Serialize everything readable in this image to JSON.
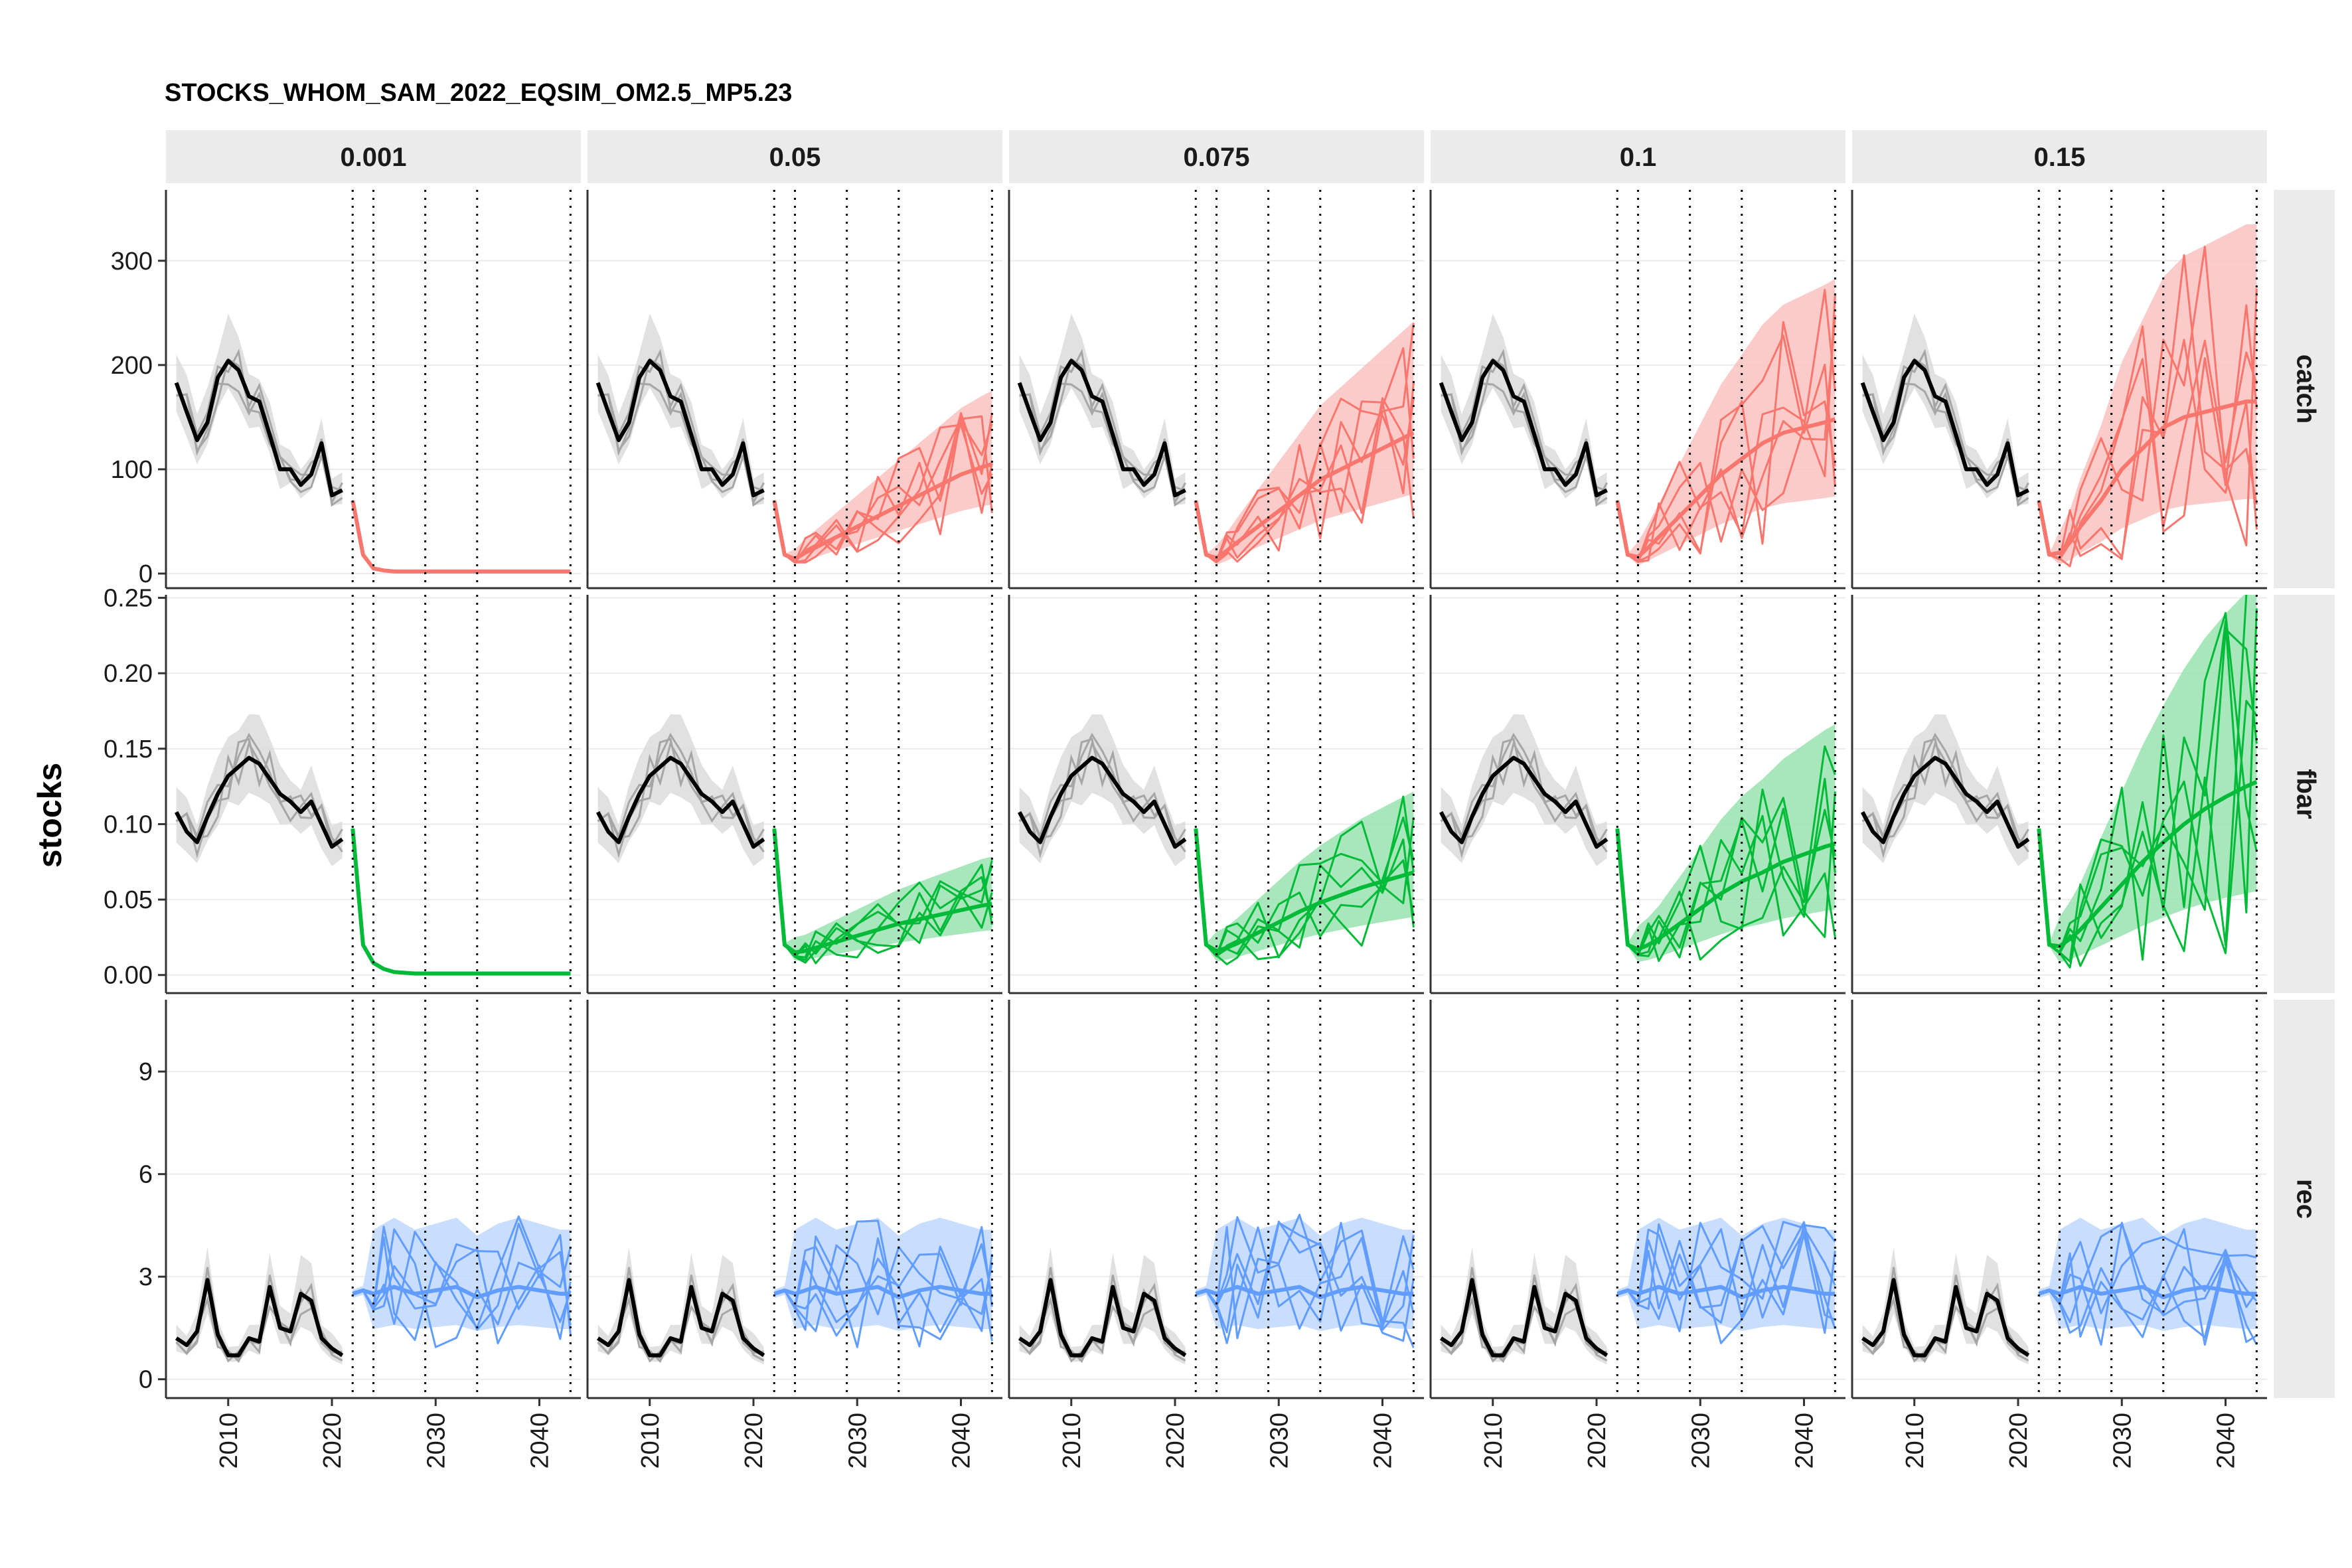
{
  "chart_data": {
    "type": "line",
    "title": "STOCKS_WHOM_SAM_2022_EQSIM_OM2.5_MP5.23",
    "ylabel": "stocks",
    "xlabel": "",
    "facet_columns": [
      "0.001",
      "0.05",
      "0.075",
      "0.1",
      "0.15"
    ],
    "facet_rows": [
      "catch",
      "fbar",
      "rec"
    ],
    "x_ticks": [
      2010,
      2020,
      2030,
      2040
    ],
    "xlim": [
      2004,
      2044
    ],
    "vlines": [
      2022,
      2024,
      2029,
      2034,
      2043
    ],
    "grid": "horizontal major gridlines",
    "rows": [
      {
        "name": "catch",
        "ylim": [
          -14,
          368
        ],
        "y_ticks": [
          0,
          100,
          200,
          300
        ],
        "y_tick_labels": [
          "0",
          "100",
          "200",
          "300"
        ],
        "color": "#F8766D",
        "band_color": "#F9C2BE",
        "history": {
          "x": [
            2005,
            2006,
            2007,
            2008,
            2009,
            2010,
            2011,
            2012,
            2013,
            2014,
            2015,
            2016,
            2017,
            2018,
            2019,
            2020,
            2021
          ],
          "median": [
            183,
            155,
            128,
            145,
            188,
            204,
            195,
            170,
            165,
            133,
            100,
            100,
            85,
            95,
            125,
            75,
            80
          ]
        },
        "projection_median": {
          "0.001": {
            "x": [
              2022,
              2023,
              2024,
              2025,
              2026,
              2028,
              2030,
              2032,
              2034,
              2036,
              2038,
              2040,
              2042,
              2043
            ],
            "y": [
              70,
              18,
              5,
              3,
              2,
              2,
              2,
              2,
              2,
              2,
              2,
              2,
              2,
              2
            ]
          },
          "0.05": {
            "x": [
              2022,
              2023,
              2024,
              2025,
              2026,
              2028,
              2030,
              2032,
              2034,
              2036,
              2038,
              2040,
              2042,
              2043
            ],
            "y": [
              70,
              18,
              14,
              20,
              25,
              35,
              45,
              55,
              65,
              75,
              85,
              95,
              102,
              105
            ]
          },
          "0.075": {
            "x": [
              2022,
              2023,
              2024,
              2025,
              2026,
              2028,
              2030,
              2032,
              2034,
              2036,
              2038,
              2040,
              2042,
              2043
            ],
            "y": [
              70,
              18,
              15,
              22,
              30,
              45,
              60,
              75,
              90,
              100,
              110,
              120,
              130,
              135
            ]
          },
          "0.1": {
            "x": [
              2022,
              2023,
              2024,
              2025,
              2026,
              2028,
              2030,
              2032,
              2034,
              2036,
              2038,
              2040,
              2042,
              2043
            ],
            "y": [
              70,
              18,
              16,
              25,
              35,
              55,
              75,
              95,
              110,
              125,
              135,
              140,
              145,
              148
            ]
          },
          "0.15": {
            "x": [
              2022,
              2023,
              2024,
              2025,
              2026,
              2028,
              2030,
              2032,
              2034,
              2036,
              2038,
              2040,
              2042,
              2043
            ],
            "y": [
              70,
              18,
              20,
              30,
              45,
              70,
              100,
              120,
              140,
              150,
              155,
              160,
              165,
              165
            ]
          }
        }
      },
      {
        "name": "fbar",
        "ylim": [
          -0.012,
          0.252
        ],
        "y_ticks": [
          0,
          0.05,
          0.1,
          0.15,
          0.2,
          0.25
        ],
        "y_tick_labels": [
          "0.00",
          "0.05",
          "0.10",
          "0.15",
          "0.20",
          "0.25"
        ],
        "color": "#00BA38",
        "band_color": "#99E3AF",
        "history": {
          "x": [
            2005,
            2006,
            2007,
            2008,
            2009,
            2010,
            2011,
            2012,
            2013,
            2014,
            2015,
            2016,
            2017,
            2018,
            2019,
            2020,
            2021
          ],
          "median": [
            0.108,
            0.095,
            0.088,
            0.105,
            0.12,
            0.132,
            0.138,
            0.144,
            0.14,
            0.13,
            0.12,
            0.115,
            0.108,
            0.115,
            0.1,
            0.085,
            0.09
          ]
        },
        "projection_median": {
          "0.001": {
            "x": [
              2022,
              2023,
              2024,
              2025,
              2026,
              2028,
              2030,
              2032,
              2034,
              2036,
              2038,
              2040,
              2042,
              2043
            ],
            "y": [
              0.097,
              0.02,
              0.008,
              0.004,
              0.002,
              0.001,
              0.001,
              0.001,
              0.001,
              0.001,
              0.001,
              0.001,
              0.001,
              0.001
            ]
          },
          "0.05": {
            "x": [
              2022,
              2023,
              2024,
              2025,
              2026,
              2028,
              2030,
              2032,
              2034,
              2036,
              2038,
              2040,
              2042,
              2043
            ],
            "y": [
              0.097,
              0.02,
              0.015,
              0.016,
              0.018,
              0.022,
              0.026,
              0.03,
              0.034,
              0.037,
              0.04,
              0.043,
              0.046,
              0.047
            ]
          },
          "0.075": {
            "x": [
              2022,
              2023,
              2024,
              2025,
              2026,
              2028,
              2030,
              2032,
              2034,
              2036,
              2038,
              2040,
              2042,
              2043
            ],
            "y": [
              0.097,
              0.02,
              0.016,
              0.018,
              0.021,
              0.028,
              0.035,
              0.042,
              0.048,
              0.053,
              0.058,
              0.062,
              0.066,
              0.068
            ]
          },
          "0.1": {
            "x": [
              2022,
              2023,
              2024,
              2025,
              2026,
              2028,
              2030,
              2032,
              2034,
              2036,
              2038,
              2040,
              2042,
              2043
            ],
            "y": [
              0.097,
              0.02,
              0.017,
              0.02,
              0.024,
              0.034,
              0.044,
              0.054,
              0.062,
              0.068,
              0.075,
              0.08,
              0.085,
              0.087
            ]
          },
          "0.15": {
            "x": [
              2022,
              2023,
              2024,
              2025,
              2026,
              2028,
              2030,
              2032,
              2034,
              2036,
              2038,
              2040,
              2042,
              2043
            ],
            "y": [
              0.097,
              0.02,
              0.019,
              0.024,
              0.03,
              0.045,
              0.06,
              0.075,
              0.088,
              0.1,
              0.11,
              0.118,
              0.125,
              0.128
            ]
          }
        }
      },
      {
        "name": "rec",
        "ylim": [
          -0.55,
          11.1
        ],
        "y_ticks": [
          0,
          3,
          6,
          9
        ],
        "y_tick_labels": [
          "0",
          "3",
          "6",
          "9"
        ],
        "color": "#619CFF",
        "band_color": "#C0D7FF",
        "history": {
          "x": [
            2005,
            2006,
            2007,
            2008,
            2009,
            2010,
            2011,
            2012,
            2013,
            2014,
            2015,
            2016,
            2017,
            2018,
            2019,
            2020,
            2021
          ],
          "median": [
            1.2,
            1.0,
            1.4,
            2.9,
            1.3,
            0.7,
            0.7,
            1.2,
            1.1,
            2.7,
            1.5,
            1.4,
            2.5,
            2.3,
            1.2,
            0.9,
            0.7
          ]
        },
        "projection_median": {
          "0.001": {
            "x": [
              2022,
              2023,
              2024,
              2025,
              2026,
              2028,
              2030,
              2032,
              2034,
              2036,
              2038,
              2040,
              2042,
              2043
            ],
            "y": [
              2.5,
              2.6,
              2.5,
              2.6,
              2.7,
              2.5,
              2.6,
              2.7,
              2.4,
              2.6,
              2.7,
              2.6,
              2.5,
              2.5
            ]
          },
          "0.05": {
            "x": [
              2022,
              2023,
              2024,
              2025,
              2026,
              2028,
              2030,
              2032,
              2034,
              2036,
              2038,
              2040,
              2042,
              2043
            ],
            "y": [
              2.5,
              2.6,
              2.5,
              2.6,
              2.7,
              2.5,
              2.6,
              2.7,
              2.4,
              2.6,
              2.7,
              2.6,
              2.5,
              2.5
            ]
          },
          "0.075": {
            "x": [
              2022,
              2023,
              2024,
              2025,
              2026,
              2028,
              2030,
              2032,
              2034,
              2036,
              2038,
              2040,
              2042,
              2043
            ],
            "y": [
              2.5,
              2.6,
              2.5,
              2.6,
              2.7,
              2.5,
              2.6,
              2.7,
              2.4,
              2.6,
              2.7,
              2.6,
              2.5,
              2.5
            ]
          },
          "0.1": {
            "x": [
              2022,
              2023,
              2024,
              2025,
              2026,
              2028,
              2030,
              2032,
              2034,
              2036,
              2038,
              2040,
              2042,
              2043
            ],
            "y": [
              2.5,
              2.6,
              2.5,
              2.6,
              2.7,
              2.5,
              2.6,
              2.7,
              2.4,
              2.6,
              2.7,
              2.6,
              2.5,
              2.5
            ]
          },
          "0.15": {
            "x": [
              2022,
              2023,
              2024,
              2025,
              2026,
              2028,
              2030,
              2032,
              2034,
              2036,
              2038,
              2040,
              2042,
              2043
            ],
            "y": [
              2.5,
              2.6,
              2.5,
              2.6,
              2.7,
              2.5,
              2.6,
              2.7,
              2.4,
              2.6,
              2.7,
              2.6,
              2.5,
              2.5
            ]
          }
        }
      }
    ]
  }
}
